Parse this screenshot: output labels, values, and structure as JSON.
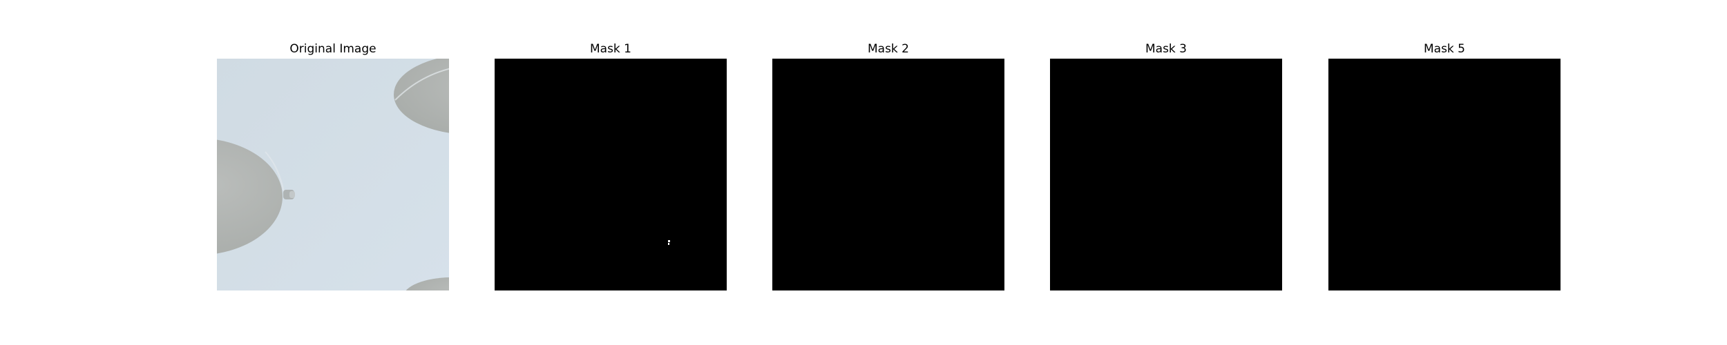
{
  "figure": {
    "panels": [
      {
        "id": "original",
        "title": "Original Image",
        "kind": "photo"
      },
      {
        "id": "mask1",
        "title": "Mask 1",
        "kind": "mask",
        "has_highlight": true
      },
      {
        "id": "mask2",
        "title": "Mask 2",
        "kind": "mask",
        "has_highlight": false
      },
      {
        "id": "mask3",
        "title": "Mask 3",
        "kind": "mask",
        "has_highlight": false
      },
      {
        "id": "mask5",
        "title": "Mask 5",
        "kind": "mask",
        "has_highlight": false
      }
    ],
    "colors": {
      "page_background": "#ffffff",
      "photo_background": "#d2dde6",
      "photo_shape_gray": "#b4b8b6",
      "mask_background": "#000000",
      "mask_foreground": "#ffffff"
    }
  }
}
